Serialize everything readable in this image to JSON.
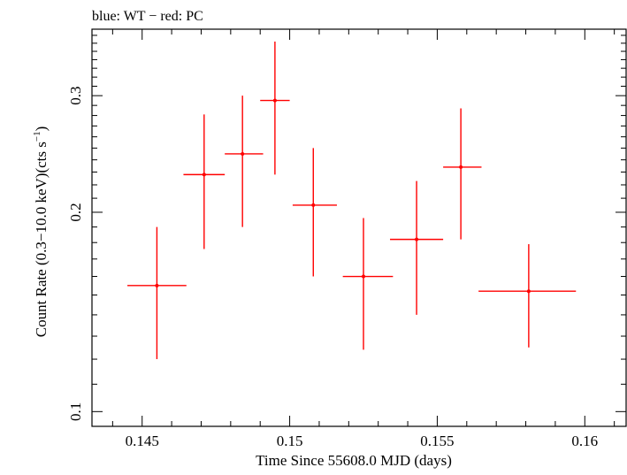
{
  "chart_data": {
    "type": "scatter",
    "title": "blue: WT − red: PC",
    "xlabel": "Time Since 55608.0 MJD (days)",
    "ylabel_main": "Count Rate (0.3−10.0 keV)(cts s",
    "ylabel_sup": "−1",
    "ylabel_end": ")",
    "xlim": [
      0.1433,
      0.1614
    ],
    "ylim": [
      0.095,
      0.378
    ],
    "y_scale": "log",
    "grid": false,
    "x_ticks": [
      {
        "value": 0.145,
        "label": "0.145"
      },
      {
        "value": 0.15,
        "label": "0.15"
      },
      {
        "value": 0.155,
        "label": "0.155"
      },
      {
        "value": 0.16,
        "label": "0.16"
      }
    ],
    "y_ticks": [
      {
        "value": 0.1,
        "label": "0.1"
      },
      {
        "value": 0.2,
        "label": "0.2"
      },
      {
        "value": 0.3,
        "label": "0.3"
      }
    ],
    "series": [
      {
        "color": "#ff0000",
        "points": [
          {
            "x": 0.1455,
            "xerr_low": 0.1445,
            "xerr_high": 0.1465,
            "y": 0.155,
            "yerr_low": 0.12,
            "yerr_high": 0.19
          },
          {
            "x": 0.1471,
            "xerr_low": 0.1464,
            "xerr_high": 0.1478,
            "y": 0.228,
            "yerr_low": 0.176,
            "yerr_high": 0.281
          },
          {
            "x": 0.1484,
            "xerr_low": 0.1478,
            "xerr_high": 0.1491,
            "y": 0.245,
            "yerr_low": 0.19,
            "yerr_high": 0.3
          },
          {
            "x": 0.1495,
            "xerr_low": 0.149,
            "xerr_high": 0.15,
            "y": 0.295,
            "yerr_low": 0.228,
            "yerr_high": 0.362
          },
          {
            "x": 0.1508,
            "xerr_low": 0.1501,
            "xerr_high": 0.1516,
            "y": 0.205,
            "yerr_low": 0.16,
            "yerr_high": 0.25
          },
          {
            "x": 0.1525,
            "xerr_low": 0.1518,
            "xerr_high": 0.1535,
            "y": 0.16,
            "yerr_low": 0.124,
            "yerr_high": 0.196
          },
          {
            "x": 0.1543,
            "xerr_low": 0.1534,
            "xerr_high": 0.1552,
            "y": 0.182,
            "yerr_low": 0.14,
            "yerr_high": 0.223
          },
          {
            "x": 0.1558,
            "xerr_low": 0.1552,
            "xerr_high": 0.1565,
            "y": 0.234,
            "yerr_low": 0.182,
            "yerr_high": 0.287
          },
          {
            "x": 0.1581,
            "xerr_low": 0.1564,
            "xerr_high": 0.1597,
            "y": 0.152,
            "yerr_low": 0.125,
            "yerr_high": 0.179
          }
        ]
      }
    ]
  }
}
